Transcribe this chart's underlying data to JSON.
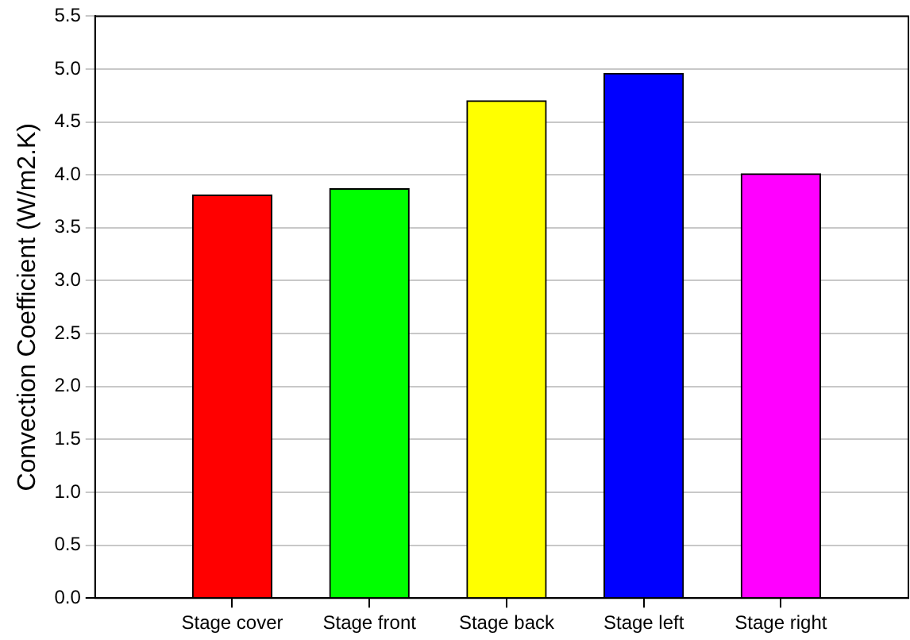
{
  "chart_data": {
    "type": "bar",
    "ylabel": "Convection Coefficient (W/m2.K)",
    "categories": [
      "Stage cover",
      "Stage front",
      "Stage back",
      "Stage left",
      "Stage right"
    ],
    "values": [
      3.81,
      3.87,
      4.7,
      4.96,
      4.01
    ],
    "colors": [
      "#ff0000",
      "#00ff00",
      "#ffff00",
      "#0000ff",
      "#ff00ff"
    ],
    "ylim": [
      0,
      5.5
    ],
    "yticks": [
      {
        "value": 0,
        "label": "0.0"
      },
      0.5,
      {
        "value": 1,
        "label": "1.0"
      },
      1.5,
      {
        "value": 2,
        "label": "2.0"
      },
      2.5,
      {
        "value": 3,
        "label": "3.0"
      },
      3.5,
      {
        "value": 4,
        "label": "4.0"
      },
      4.5,
      {
        "value": 5,
        "label": "5.0"
      },
      5.5
    ],
    "grid": "y",
    "legend": false
  }
}
